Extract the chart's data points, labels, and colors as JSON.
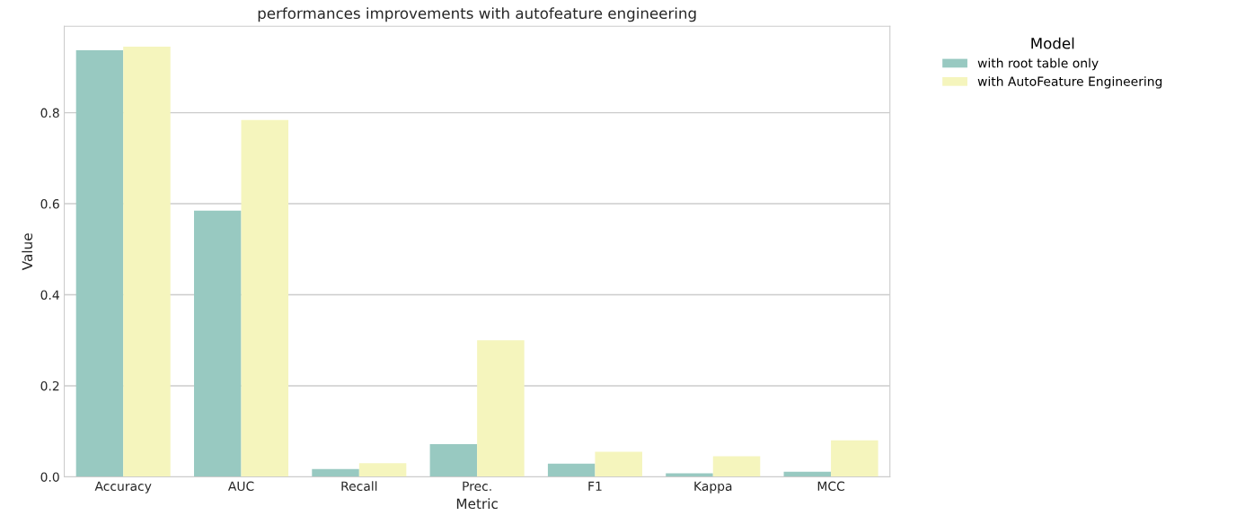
{
  "chart_data": {
    "type": "bar",
    "title": "performances improvements with autofeature engineering",
    "xlabel": "Metric",
    "ylabel": "Value",
    "legend_title": "Model",
    "categories": [
      "Accuracy",
      "AUC",
      "Recall",
      "Prec.",
      "F1",
      "Kappa",
      "MCC"
    ],
    "series": [
      {
        "name": "with root table only",
        "color": "#98c9c1",
        "values": [
          0.937,
          0.585,
          0.017,
          0.072,
          0.029,
          0.008,
          0.011
        ]
      },
      {
        "name": "with AutoFeature Engineering",
        "color": "#f5f5bd",
        "values": [
          0.945,
          0.784,
          0.03,
          0.3,
          0.055,
          0.045,
          0.08
        ]
      }
    ],
    "ylim": [
      0,
      0.99
    ],
    "yticks": [
      {
        "value": 0,
        "label": "0.0"
      },
      0.2,
      0.4,
      0.6,
      0.8
    ],
    "grid": "y",
    "legend": "top right"
  }
}
